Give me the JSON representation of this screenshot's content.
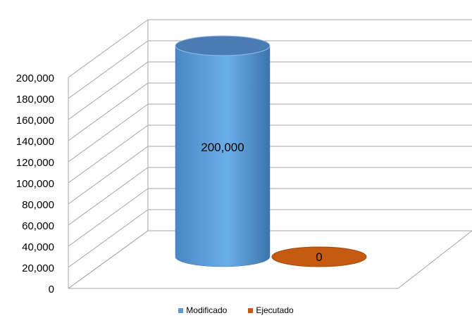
{
  "chart_data": {
    "type": "bar",
    "bar_shape": "cylinder-3d",
    "categories": [
      "Modificado",
      "Ejecutado"
    ],
    "values": [
      200000,
      0
    ],
    "data_labels": [
      "200,000",
      "0"
    ],
    "colors": [
      "#5b9bd5",
      "#c55a11"
    ],
    "ylim": [
      0,
      200000
    ],
    "yticks": [
      0,
      20000,
      40000,
      60000,
      80000,
      100000,
      120000,
      140000,
      160000,
      180000,
      200000
    ],
    "ytick_labels": [
      "0",
      "20,000",
      "40,000",
      "60,000",
      "80,000",
      "100,000",
      "120,000",
      "140,000",
      "160,000",
      "180,000",
      "200,000"
    ],
    "grid": true,
    "legend_position": "bottom",
    "legend": [
      "Modificado",
      "Ejecutado"
    ]
  }
}
